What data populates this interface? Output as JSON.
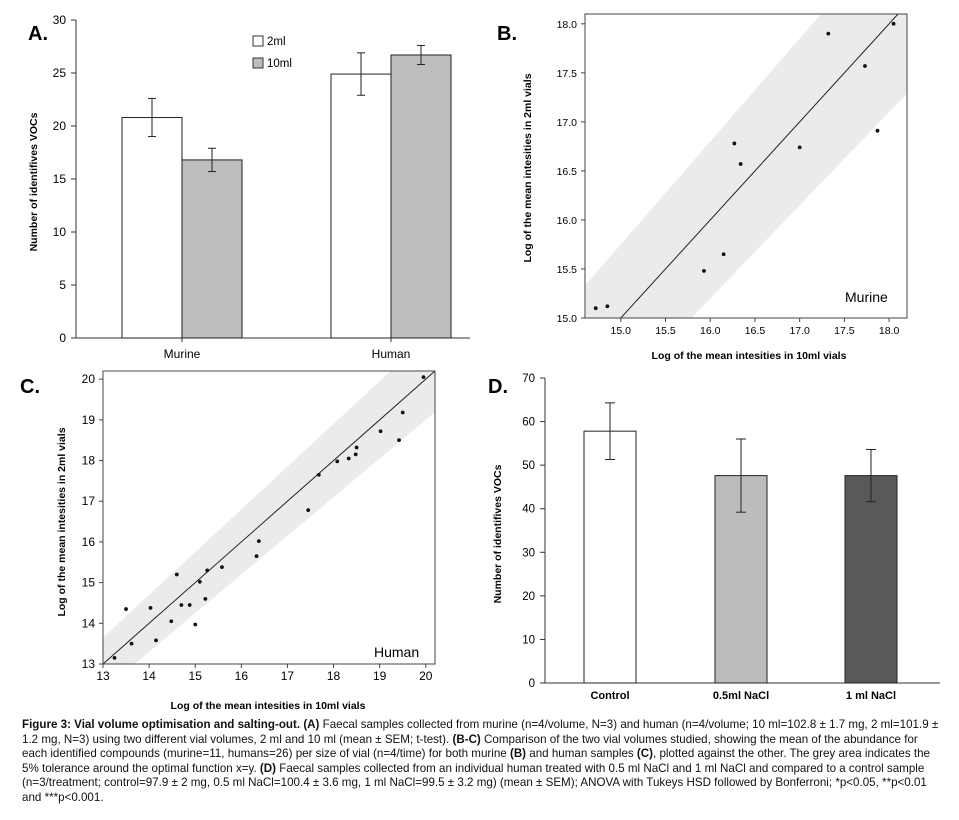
{
  "chart_data": [
    {
      "panel_id": "A",
      "panel_label": "A.",
      "type": "bar",
      "categories": [
        "Murine",
        "Human"
      ],
      "series": [
        {
          "name": "2ml",
          "color": "#ffffff",
          "values": [
            20.8,
            24.9
          ],
          "errors": [
            1.8,
            2.0
          ]
        },
        {
          "name": "10ml",
          "color": "#bdbdbd",
          "values": [
            16.8,
            26.7
          ],
          "errors": [
            1.1,
            0.9
          ]
        }
      ],
      "ylabel": "Number of identifives VOCs",
      "xlabel": "",
      "ylim": [
        0,
        30
      ],
      "yticks": [
        "0",
        "5",
        "10",
        "15",
        "20",
        "25",
        "30"
      ],
      "legend": "top-center"
    },
    {
      "panel_id": "B",
      "panel_label": "B.",
      "type": "scatter",
      "annotation": "Murine",
      "xlabel": "Log of the mean intesities in 10ml vials",
      "ylabel": "Log of the mean intesities in 2ml vials",
      "xlim": [
        14.6,
        18.2
      ],
      "ylim": [
        15.0,
        18.1
      ],
      "xticks": [
        "15.0",
        "15.5",
        "16.0",
        "16.5",
        "17.0",
        "17.5",
        "18.0"
      ],
      "yticks": [
        "15.0",
        "15.5",
        "16.0",
        "16.5",
        "17.0",
        "17.5",
        "18.0"
      ],
      "reference_line": "x=y",
      "tolerance": 0.05,
      "points": [
        [
          14.72,
          15.1
        ],
        [
          14.85,
          15.12
        ],
        [
          15.93,
          15.48
        ],
        [
          16.15,
          15.65
        ],
        [
          16.27,
          16.78
        ],
        [
          16.34,
          16.57
        ],
        [
          17.0,
          16.74
        ],
        [
          17.32,
          17.9
        ],
        [
          17.73,
          17.57
        ],
        [
          17.87,
          16.91
        ],
        [
          18.05,
          18.0
        ]
      ]
    },
    {
      "panel_id": "C",
      "panel_label": "C.",
      "type": "scatter",
      "annotation": "Human",
      "xlabel": "Log of the mean intesities in 10ml vials",
      "ylabel": "Log of the mean intesities in 2ml vials",
      "xlim": [
        13,
        20.2
      ],
      "ylim": [
        13,
        20.2
      ],
      "xticks": [
        "13",
        "14",
        "15",
        "16",
        "17",
        "18",
        "19",
        "20"
      ],
      "yticks": [
        "13",
        "14",
        "15",
        "16",
        "17",
        "18",
        "19",
        "20"
      ],
      "reference_line": "x=y",
      "tolerance": 0.05,
      "points": [
        [
          13.25,
          13.15
        ],
        [
          13.5,
          14.35
        ],
        [
          13.62,
          13.5
        ],
        [
          14.03,
          14.38
        ],
        [
          14.15,
          13.58
        ],
        [
          14.48,
          14.05
        ],
        [
          14.6,
          15.2
        ],
        [
          14.7,
          14.45
        ],
        [
          14.88,
          14.45
        ],
        [
          15.0,
          13.97
        ],
        [
          15.1,
          15.02
        ],
        [
          15.22,
          14.6
        ],
        [
          15.26,
          15.3
        ],
        [
          15.58,
          15.38
        ],
        [
          16.33,
          15.65
        ],
        [
          16.38,
          16.02
        ],
        [
          17.45,
          16.78
        ],
        [
          17.68,
          17.65
        ],
        [
          18.08,
          17.98
        ],
        [
          18.33,
          18.05
        ],
        [
          18.48,
          18.15
        ],
        [
          18.5,
          18.32
        ],
        [
          19.02,
          18.72
        ],
        [
          19.42,
          18.5
        ],
        [
          19.5,
          19.18
        ],
        [
          19.95,
          20.05
        ]
      ]
    },
    {
      "panel_id": "D",
      "panel_label": "D.",
      "type": "bar",
      "categories": [
        "Control",
        "0.5ml NaCl",
        "1 ml NaCl"
      ],
      "values": [
        57.8,
        47.6,
        47.6
      ],
      "errors": [
        6.5,
        8.4,
        6.0
      ],
      "colors": [
        "#ffffff",
        "#bcbcbc",
        "#595959"
      ],
      "ylabel": "Number of identifives VOCs",
      "xlabel": "",
      "ylim": [
        0,
        70
      ],
      "yticks": [
        "0",
        "10",
        "20",
        "30",
        "40",
        "50",
        "60",
        "70"
      ]
    }
  ],
  "caption": {
    "title": "Figure 3: Vial volume optimisation and salting-out.",
    "bold_A": "(A)",
    "text_A": " Faecal samples collected from murine (n=4/volume, N=3) and human (n=4/volume; 10 ml=102.8 ± 1.7 mg, 2 ml=101.9 ± 1.2 mg, N=3) using two different vial volumes, 2 ml and 10 ml (mean ± SEM; t-test). ",
    "bold_BC": "(B-C)",
    "text_BC": " Comparison of the two vial volumes studied, showing the mean of the abundance for each identified compounds (murine=11, humans=26) per size of vial (n=4/time) for both murine ",
    "bold_B": "(B)",
    "text_mid": " and human samples ",
    "bold_C": "(C)",
    "text_C": ", plotted against the other. The grey area indicates the 5% tolerance around the optimal function x=y. ",
    "bold_D": "(D)",
    "text_D": " Faecal samples collected from an individual human treated with 0.5 ml NaCl and 1 ml NaCl and compared to a control sample (n=3/treatment; control=97.9 ± 2 mg, 0.5 ml NaCl=100.4 ± 3.6 mg, 1 ml NaCl=99.5 ± 3.2 mg) (mean ± SEM); ANOVA with Tukeys HSD followed by Bonferroni; *p<0.05, **p<0.01 and ***p<0.001."
  }
}
